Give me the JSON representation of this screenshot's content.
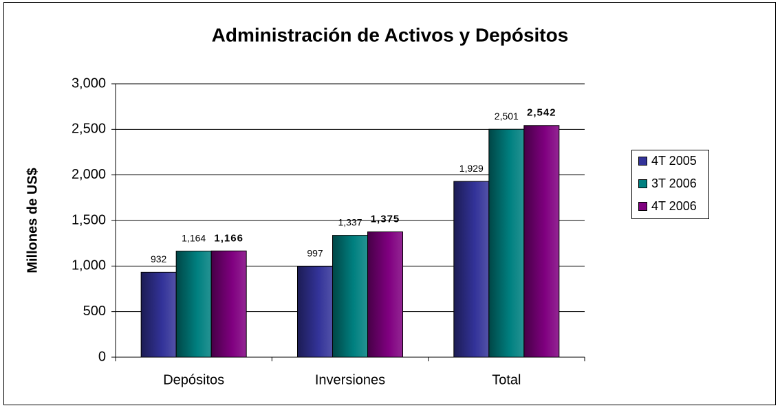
{
  "chart_data": {
    "type": "bar",
    "title": "Administración de Activos y Depósitos",
    "y_label": "Millones de US$",
    "categories": [
      "Depósitos",
      "Inversiones",
      "Total"
    ],
    "series": [
      {
        "name": "4T 2005",
        "color": "#333399",
        "values": [
          932,
          997,
          1929
        ],
        "value_labels": [
          "932",
          "997",
          "1,929"
        ]
      },
      {
        "name": "3T 2006",
        "color": "#008080",
        "values": [
          1164,
          1337,
          2501
        ],
        "value_labels": [
          "1,164",
          "1,337",
          "2,501"
        ]
      },
      {
        "name": "4T 2006",
        "color": "#800080",
        "values": [
          1166,
          1375,
          2542
        ],
        "value_labels": [
          "1,166",
          "1,375",
          "2,542"
        ]
      }
    ],
    "ylim": [
      0,
      3000
    ],
    "yticks": [
      0,
      500,
      {
        "value": 1000,
        "label": "1,000"
      },
      {
        "value": 1500,
        "label": "1,500"
      },
      {
        "value": 2000,
        "label": "2,000"
      },
      {
        "value": 2500,
        "label": "2,500"
      },
      {
        "value": 3000,
        "label": "3,000"
      }
    ],
    "grid": true,
    "legend": "right"
  }
}
